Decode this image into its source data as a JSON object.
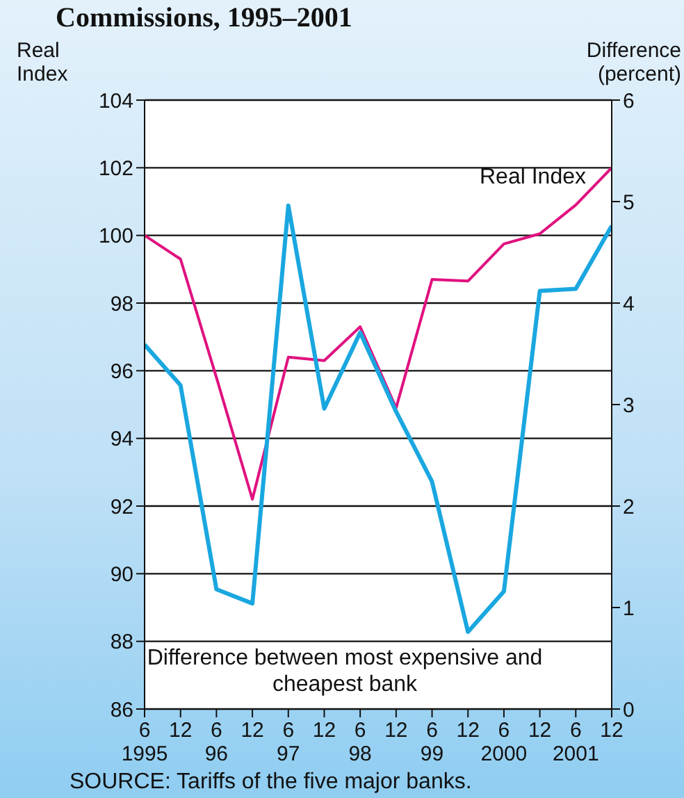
{
  "chart_data": {
    "type": "line",
    "title": "Commissions, 1995–2001",
    "ylabel": "Real\nIndex",
    "y2label": "Difference\n(percent)",
    "categories": [
      "6\n1995",
      "12",
      "6\n96",
      "12",
      "6\n97",
      "12",
      "6\n98",
      "12",
      "6\n99",
      "12",
      "6\n2000",
      "12",
      "6\n2001",
      "12"
    ],
    "series": [
      {
        "name": "Real Index",
        "color": "#e0117f",
        "values": [
          100.0,
          99.3,
          95.8,
          92.2,
          96.4,
          96.3,
          97.3,
          94.9,
          98.7,
          98.65,
          99.75,
          100.05,
          100.9,
          102.0
        ]
      },
      {
        "name": "Difference between most expensive and cheapest bank",
        "color": "#1aa7e0",
        "axis": "y2",
        "values": [
          3.59,
          3.19,
          1.18,
          1.04,
          4.96,
          2.96,
          3.71,
          2.93,
          2.24,
          0.76,
          1.16,
          4.12,
          4.14,
          4.76
        ]
      }
    ],
    "ylim": [
      86,
      104
    ],
    "yticks": [
      86,
      88,
      90,
      92,
      94,
      96,
      98,
      100,
      102,
      104
    ],
    "y2lim": [
      0,
      6
    ],
    "y2ticks": [
      0,
      1,
      2,
      3,
      4,
      5,
      6
    ],
    "grid": "y",
    "legend": false,
    "marker": "none",
    "line_style": "solid",
    "annotations": [
      "SOURCE: Tariffs of the five major banks."
    ]
  }
}
